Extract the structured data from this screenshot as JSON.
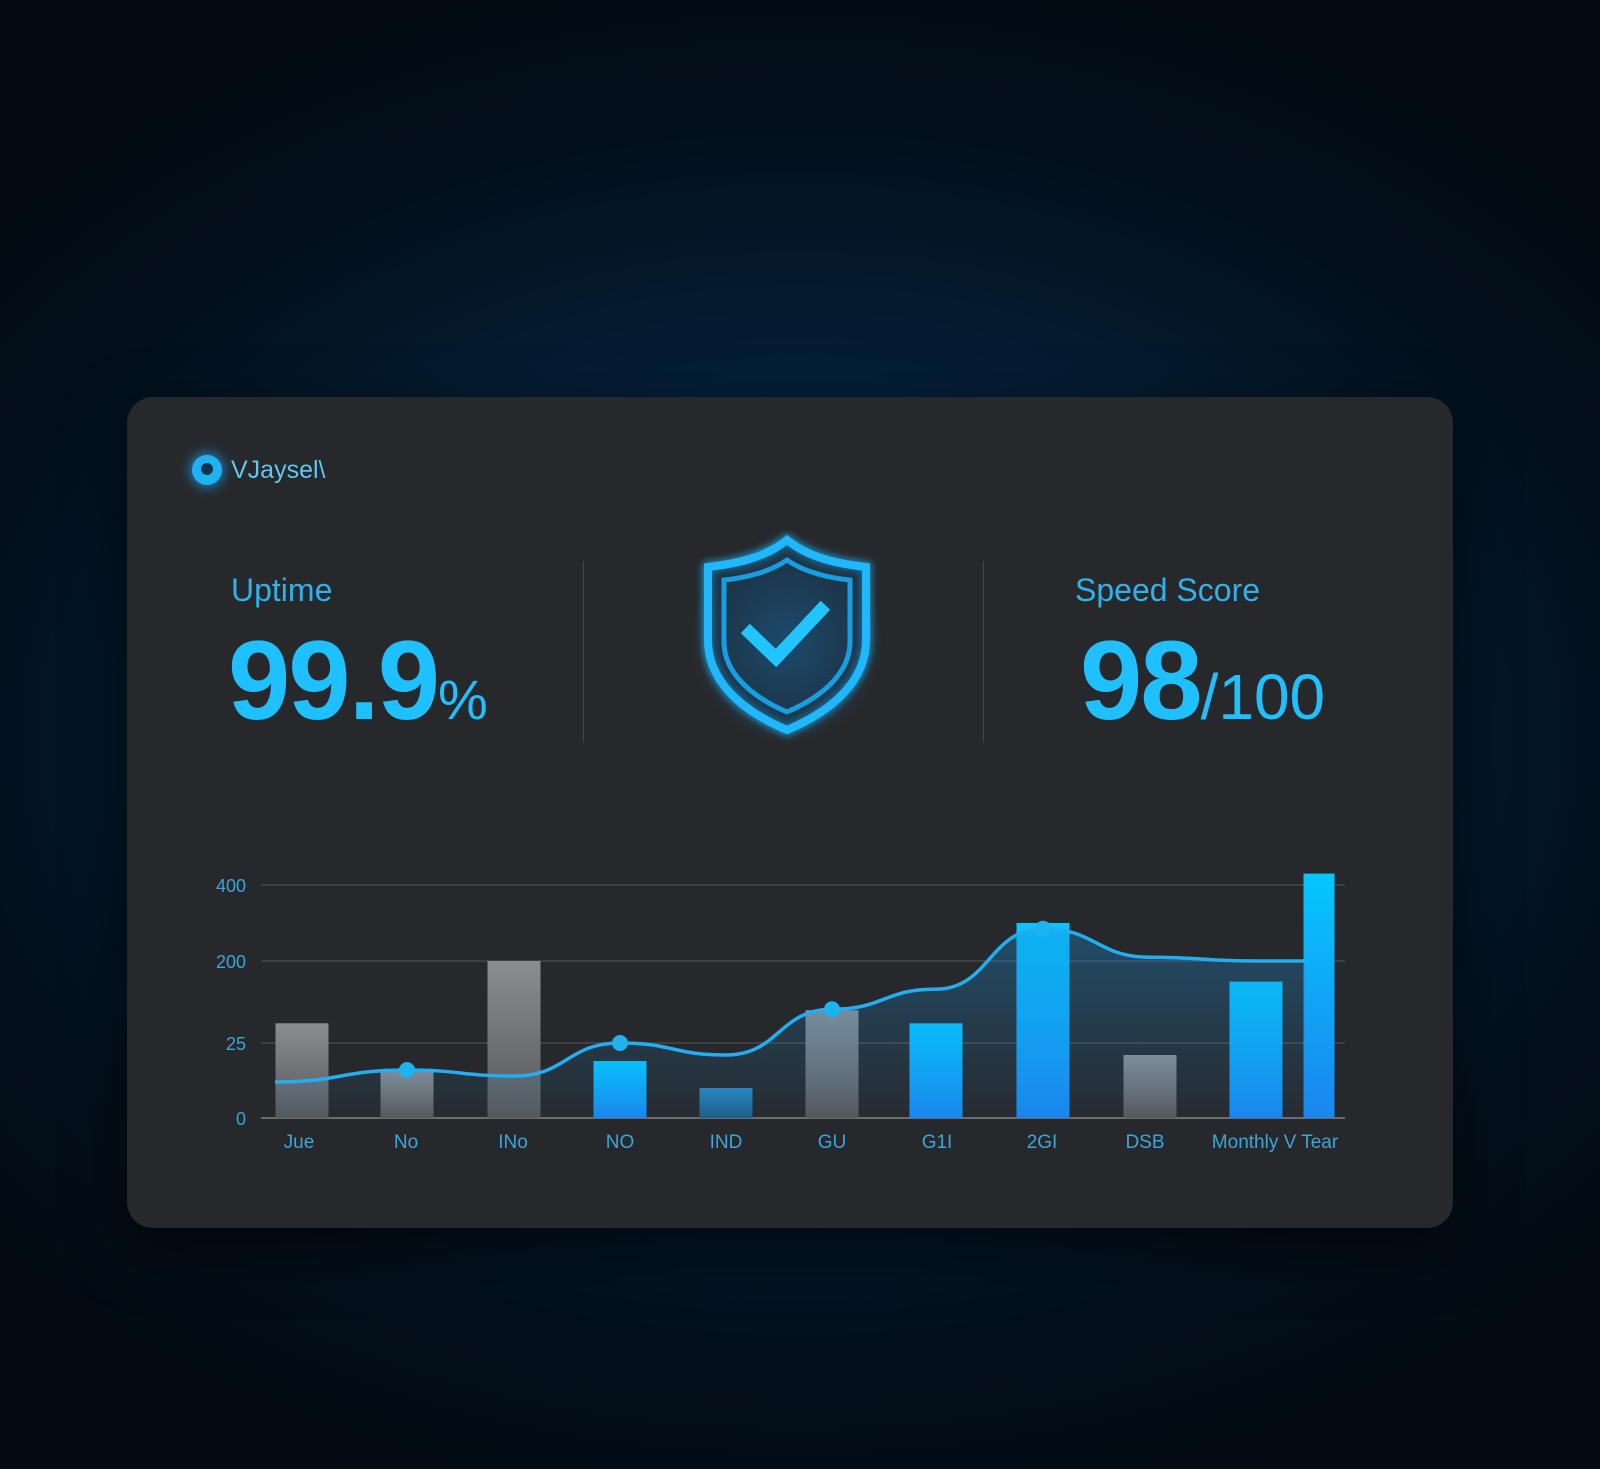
{
  "brand": {
    "name": "VJaysel\\"
  },
  "metrics": {
    "uptime": {
      "label": "Uptime",
      "value": "99.9",
      "unit": "%"
    },
    "speed": {
      "label": "Speed Score",
      "value": "98",
      "unit": "/100"
    }
  },
  "status_icon": "shield-check-icon",
  "colors": {
    "accent": "#1fc0ff",
    "bar_gray": "#7f8084",
    "bar_blue": "#08b4f5",
    "card": "#27282b"
  },
  "chart_data": {
    "type": "bar",
    "categories": [
      "Jue",
      "No",
      "INo",
      "NO",
      "IND",
      "GU",
      "G1I",
      "2GI",
      "DSB",
      "Monthly V Tear",
      ""
    ],
    "series": [
      {
        "type": "bar",
        "values": [
          67,
          16,
          200,
          19,
          10,
          95,
          67,
          300,
          21,
          156,
          430
        ],
        "colors": [
          "gray",
          "gray",
          "gray",
          "blue",
          "darkblue",
          "gray",
          "blue",
          "blue",
          "gray",
          "blue",
          "blue"
        ]
      },
      {
        "type": "line",
        "values": [
          12,
          16,
          14,
          25,
          21,
          97,
          140,
          285,
          210,
          200,
          200
        ],
        "markers": [
          false,
          true,
          false,
          true,
          false,
          true,
          false,
          true,
          false,
          false,
          false
        ]
      }
    ],
    "y_ticks": [
      "0",
      "25",
      "200",
      "400"
    ],
    "y_tick_values": [
      0,
      25,
      200,
      400
    ],
    "ylim": [
      0,
      430
    ],
    "grid": true,
    "xlabel": "",
    "ylabel": "",
    "title": ""
  }
}
